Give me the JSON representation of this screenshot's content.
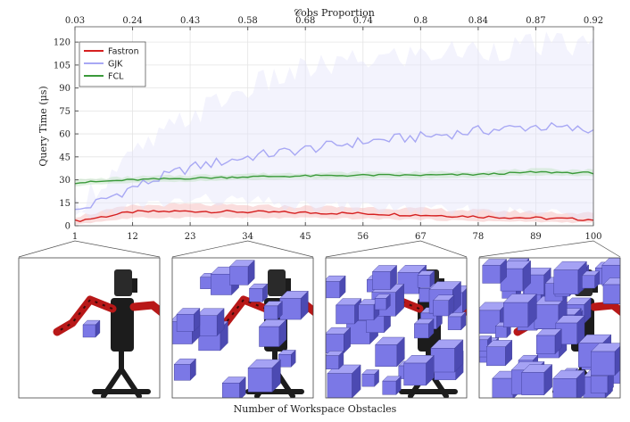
{
  "chart_data": {
    "type": "line",
    "title": "",
    "ylabel": "Query Time (μs)",
    "xlabel": "Number of Workspace Obstacles",
    "top_axis_label": "𝒞obs Proportion",
    "x_ticks": [
      1,
      12,
      23,
      34,
      45,
      56,
      67,
      78,
      89,
      100
    ],
    "top_ticks": [
      "0.03",
      "0.24",
      "0.43",
      "0.58",
      "0.68",
      "0.74",
      "0.8",
      "0.84",
      "0.87",
      "0.92"
    ],
    "y_ticks": [
      0,
      15,
      30,
      45,
      60,
      75,
      90,
      105,
      120
    ],
    "xlim": [
      1,
      100
    ],
    "ylim": [
      0,
      130
    ],
    "grid": true,
    "legend_position": "top-left",
    "series": [
      {
        "name": "Fastron",
        "color": "#d62020",
        "band_color": "#f4b4b4",
        "x": [
          1,
          12,
          23,
          34,
          45,
          56,
          67,
          78,
          89,
          100
        ],
        "values": [
          3,
          9,
          9.5,
          9,
          8.5,
          8,
          7,
          6,
          5,
          4
        ],
        "lower": [
          1,
          5,
          5.5,
          5,
          5,
          4.5,
          4,
          3,
          2.5,
          2
        ],
        "upper": [
          6,
          13,
          14,
          13,
          12.5,
          12,
          11,
          10,
          9,
          8
        ]
      },
      {
        "name": "GJK",
        "color": "#a8a8f4",
        "band_color": "#e4e4fa",
        "x": [
          1,
          12,
          23,
          34,
          45,
          56,
          67,
          78,
          89,
          100
        ],
        "values": [
          9,
          25,
          38,
          45,
          50,
          55,
          58,
          62,
          65,
          62
        ],
        "lower": [
          4,
          12,
          17,
          16,
          12,
          12,
          10,
          9,
          8,
          8
        ],
        "upper": [
          14,
          45,
          72,
          90,
          102,
          108,
          112,
          115,
          118,
          118
        ]
      },
      {
        "name": "FCL",
        "color": "#3a9a3a",
        "band_color": "#bfe2bf",
        "x": [
          1,
          12,
          23,
          34,
          45,
          56,
          67,
          78,
          89,
          100
        ],
        "values": [
          28,
          30,
          31,
          32,
          32.5,
          33,
          33,
          33.5,
          35,
          34.5
        ],
        "lower": [
          26,
          28,
          29,
          30,
          30.5,
          31,
          31,
          31.5,
          33,
          32.5
        ],
        "upper": [
          30,
          32,
          33,
          34,
          34.5,
          35,
          35,
          35.5,
          37,
          36.5
        ]
      }
    ]
  },
  "thumbnails": [
    {
      "label": "scene with 1 obstacle",
      "obstacles": 1
    },
    {
      "label": "scene with 34 obstacles",
      "obstacles": 34
    },
    {
      "label": "scene with 67 obstacles",
      "obstacles": 67
    },
    {
      "label": "scene with 100 obstacles",
      "obstacles": 100
    }
  ],
  "colors": {
    "cube_face": "#7b78e6",
    "cube_top": "#a5a2f4",
    "cube_side": "#4c4ab2",
    "robot_red": "#b81818",
    "robot_black": "#1c1c1c"
  }
}
